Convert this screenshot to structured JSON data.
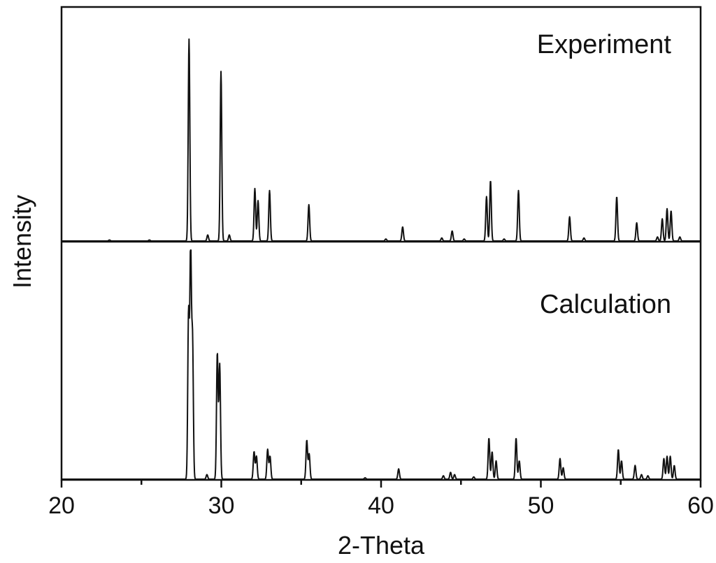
{
  "chart_data": {
    "type": "line",
    "xlabel": "2-Theta",
    "ylabel": "Intensity",
    "xlim": [
      20,
      60
    ],
    "x_ticks": [
      20,
      30,
      40,
      50,
      60
    ],
    "panels": [
      {
        "name": "Experiment",
        "ylim": [
          0,
          1.0
        ],
        "peaks": [
          {
            "x": 23.0,
            "y": 0.005
          },
          {
            "x": 25.5,
            "y": 0.005
          },
          {
            "x": 27.98,
            "y": 1.0
          },
          {
            "x": 29.15,
            "y": 0.03
          },
          {
            "x": 29.98,
            "y": 0.84
          },
          {
            "x": 30.5,
            "y": 0.03
          },
          {
            "x": 32.1,
            "y": 0.26
          },
          {
            "x": 32.3,
            "y": 0.2
          },
          {
            "x": 33.02,
            "y": 0.25
          },
          {
            "x": 35.48,
            "y": 0.18
          },
          {
            "x": 40.3,
            "y": 0.01
          },
          {
            "x": 41.35,
            "y": 0.07
          },
          {
            "x": 43.8,
            "y": 0.015
          },
          {
            "x": 44.45,
            "y": 0.05
          },
          {
            "x": 45.2,
            "y": 0.01
          },
          {
            "x": 46.6,
            "y": 0.22
          },
          {
            "x": 46.85,
            "y": 0.3
          },
          {
            "x": 47.7,
            "y": 0.01
          },
          {
            "x": 48.6,
            "y": 0.25
          },
          {
            "x": 51.8,
            "y": 0.12
          },
          {
            "x": 52.7,
            "y": 0.015
          },
          {
            "x": 54.75,
            "y": 0.22
          },
          {
            "x": 56.0,
            "y": 0.09
          },
          {
            "x": 57.3,
            "y": 0.02
          },
          {
            "x": 57.6,
            "y": 0.11
          },
          {
            "x": 57.9,
            "y": 0.16
          },
          {
            "x": 58.15,
            "y": 0.15
          },
          {
            "x": 58.7,
            "y": 0.02
          }
        ]
      },
      {
        "name": "Calculation",
        "ylim": [
          0,
          1.0
        ],
        "peaks": [
          {
            "x": 27.95,
            "y": 0.72
          },
          {
            "x": 28.08,
            "y": 1.0
          },
          {
            "x": 28.2,
            "y": 0.6
          },
          {
            "x": 29.1,
            "y": 0.02
          },
          {
            "x": 29.75,
            "y": 0.55
          },
          {
            "x": 29.9,
            "y": 0.5
          },
          {
            "x": 32.05,
            "y": 0.12
          },
          {
            "x": 32.2,
            "y": 0.1
          },
          {
            "x": 32.9,
            "y": 0.13
          },
          {
            "x": 33.05,
            "y": 0.1
          },
          {
            "x": 35.35,
            "y": 0.17
          },
          {
            "x": 35.5,
            "y": 0.11
          },
          {
            "x": 39.0,
            "y": 0.006
          },
          {
            "x": 41.1,
            "y": 0.045
          },
          {
            "x": 43.9,
            "y": 0.015
          },
          {
            "x": 44.35,
            "y": 0.03
          },
          {
            "x": 44.6,
            "y": 0.02
          },
          {
            "x": 45.8,
            "y": 0.01
          },
          {
            "x": 46.75,
            "y": 0.18
          },
          {
            "x": 46.95,
            "y": 0.12
          },
          {
            "x": 47.2,
            "y": 0.08
          },
          {
            "x": 48.45,
            "y": 0.18
          },
          {
            "x": 48.65,
            "y": 0.08
          },
          {
            "x": 51.2,
            "y": 0.09
          },
          {
            "x": 51.4,
            "y": 0.05
          },
          {
            "x": 54.85,
            "y": 0.13
          },
          {
            "x": 55.05,
            "y": 0.08
          },
          {
            "x": 55.9,
            "y": 0.06
          },
          {
            "x": 56.3,
            "y": 0.02
          },
          {
            "x": 56.7,
            "y": 0.015
          },
          {
            "x": 57.7,
            "y": 0.09
          },
          {
            "x": 57.9,
            "y": 0.1
          },
          {
            "x": 58.1,
            "y": 0.1
          },
          {
            "x": 58.35,
            "y": 0.06
          }
        ]
      }
    ],
    "grid": false
  }
}
